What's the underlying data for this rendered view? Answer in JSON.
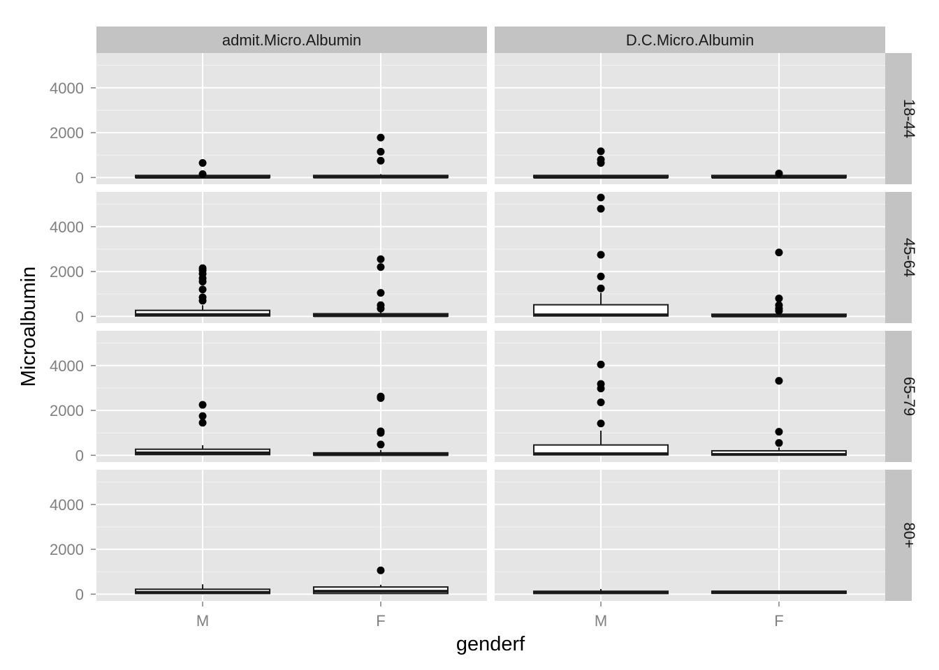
{
  "chart_data": {
    "type": "boxplot",
    "xlabel": "genderf",
    "ylabel": "Microalbumin",
    "ylim": [
      -300,
      5550
    ],
    "y_ticks": [
      0,
      2000,
      4000
    ],
    "categories": [
      "M",
      "F"
    ],
    "col_facets": [
      "admit.Micro.Albumin",
      "D.C.Micro.Albumin"
    ],
    "row_facets": [
      "18-44",
      "45-64",
      "65-79",
      "80+"
    ],
    "colors": {
      "panel": "#e5e5e5",
      "strip": "#c3c3c3",
      "grid": "#ffffff",
      "box_outline": "#1a1a1a",
      "box_fill": "#ffffff",
      "point": "#000000"
    },
    "panels": [
      {
        "row": "18-44",
        "col": "admit.Micro.Albumin",
        "boxes": [
          {
            "category": "M",
            "q1": 0,
            "median": 10,
            "q3": 30,
            "whisker_low": 0,
            "whisker_high": 60,
            "outliers": [
              150,
              650
            ]
          },
          {
            "category": "F",
            "q1": 0,
            "median": 20,
            "q3": 80,
            "whisker_low": 0,
            "whisker_high": 150,
            "outliers": [
              750,
              1150,
              1780
            ]
          }
        ]
      },
      {
        "row": "18-44",
        "col": "D.C.Micro.Albumin",
        "boxes": [
          {
            "category": "M",
            "q1": 0,
            "median": 10,
            "q3": 30,
            "whisker_low": 0,
            "whisker_high": 60,
            "outliers": [
              650,
              800,
              1170
            ]
          },
          {
            "category": "F",
            "q1": 0,
            "median": 10,
            "q3": 30,
            "whisker_low": 0,
            "whisker_high": 60,
            "outliers": [
              180
            ]
          }
        ]
      },
      {
        "row": "45-64",
        "col": "admit.Micro.Albumin",
        "boxes": [
          {
            "category": "M",
            "q1": 20,
            "median": 80,
            "q3": 270,
            "whisker_low": 0,
            "whisker_high": 500,
            "outliers": [
              700,
              850,
              1200,
              1550,
              1700,
              1900,
              2050,
              2150
            ]
          },
          {
            "category": "F",
            "q1": 10,
            "median": 30,
            "q3": 120,
            "whisker_low": 0,
            "whisker_high": 200,
            "outliers": [
              350,
              500,
              1050,
              2200,
              2550
            ]
          }
        ]
      },
      {
        "row": "45-64",
        "col": "D.C.Micro.Albumin",
        "boxes": [
          {
            "category": "M",
            "q1": 20,
            "median": 70,
            "q3": 520,
            "whisker_low": 0,
            "whisker_high": 1050,
            "outliers": [
              1250,
              1780,
              2750,
              4800,
              5300
            ]
          },
          {
            "category": "F",
            "q1": 5,
            "median": 20,
            "q3": 90,
            "whisker_low": 0,
            "whisker_high": 180,
            "outliers": [
              250,
              350,
              500,
              800,
              2850
            ]
          }
        ]
      },
      {
        "row": "65-79",
        "col": "admit.Micro.Albumin",
        "boxes": [
          {
            "category": "M",
            "q1": 30,
            "median": 110,
            "q3": 270,
            "whisker_low": 0,
            "whisker_high": 450,
            "outliers": [
              1450,
              1750,
              2250
            ]
          },
          {
            "category": "F",
            "q1": 5,
            "median": 30,
            "q3": 110,
            "whisker_low": 0,
            "whisker_high": 240,
            "outliers": [
              480,
              1000,
              1070,
              2550,
              2620
            ]
          }
        ]
      },
      {
        "row": "65-79",
        "col": "D.C.Micro.Albumin",
        "boxes": [
          {
            "category": "M",
            "q1": 20,
            "median": 70,
            "q3": 460,
            "whisker_low": 0,
            "whisker_high": 1100,
            "outliers": [
              1420,
              2360,
              2980,
              3180,
              4050
            ]
          },
          {
            "category": "F",
            "q1": 10,
            "median": 40,
            "q3": 200,
            "whisker_low": 0,
            "whisker_high": 350,
            "outliers": [
              550,
              1050,
              3320
            ]
          }
        ]
      },
      {
        "row": "80+",
        "col": "admit.Micro.Albumin",
        "boxes": [
          {
            "category": "M",
            "q1": 30,
            "median": 80,
            "q3": 220,
            "whisker_low": 0,
            "whisker_high": 440,
            "outliers": []
          },
          {
            "category": "F",
            "q1": 30,
            "median": 130,
            "q3": 320,
            "whisker_low": 0,
            "whisker_high": 420,
            "outliers": [
              1060
            ]
          }
        ]
      },
      {
        "row": "80+",
        "col": "D.C.Micro.Albumin",
        "boxes": [
          {
            "category": "M",
            "q1": 30,
            "median": 70,
            "q3": 130,
            "whisker_low": 0,
            "whisker_high": 230,
            "outliers": []
          },
          {
            "category": "F",
            "q1": 40,
            "median": 70,
            "q3": 110,
            "whisker_low": 30,
            "whisker_high": 130,
            "outliers": []
          }
        ]
      }
    ]
  }
}
